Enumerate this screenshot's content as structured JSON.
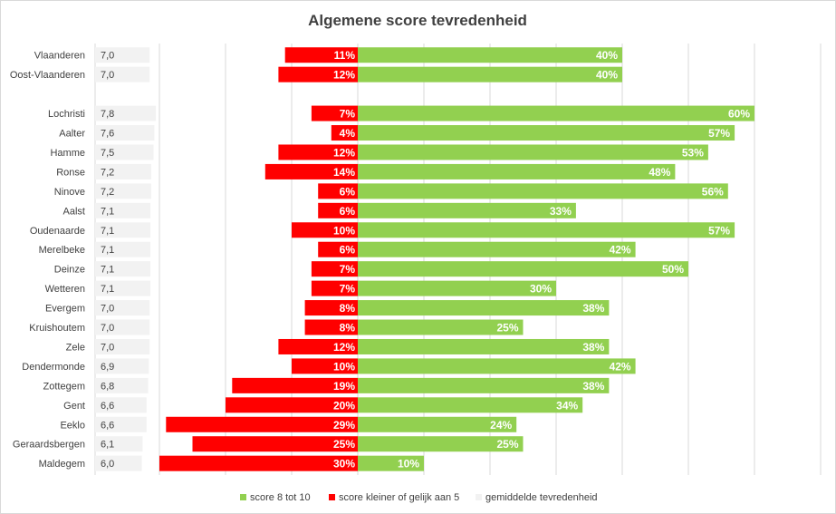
{
  "chart_data": {
    "type": "bar",
    "title": "Algemene score tevredenheid",
    "categories": [
      "Vlaanderen",
      "Oost-Vlaanderen",
      "",
      "Lochristi",
      "Aalter",
      "Hamme",
      "Ronse",
      "Ninove",
      "Aalst",
      "Oudenaarde",
      "Merelbeke",
      "Deinze",
      "Wetteren",
      "Evergem",
      "Kruishoutem",
      "Zele",
      "Dendermonde",
      "Zottegem",
      "Gent",
      "Eeklo",
      "Geraardsbergen",
      "Maldegem"
    ],
    "series": [
      {
        "name": "score 8 tot 10",
        "color": "#92d050",
        "values": [
          40,
          40,
          null,
          60,
          57,
          53,
          48,
          56,
          33,
          57,
          42,
          50,
          30,
          38,
          25,
          38,
          42,
          38,
          34,
          24,
          25,
          10
        ],
        "labels": [
          "40%",
          "40%",
          "",
          "60%",
          "57%",
          "53%",
          "48%",
          "56%",
          "33%",
          "57%",
          "42%",
          "50%",
          "30%",
          "38%",
          "25%",
          "38%",
          "42%",
          "38%",
          "34%",
          "24%",
          "25%",
          "10%"
        ]
      },
      {
        "name": "score kleiner of gelijk aan 5",
        "color": "#ff0000",
        "values": [
          11,
          12,
          null,
          7,
          4,
          12,
          14,
          6,
          6,
          10,
          6,
          7,
          7,
          8,
          8,
          12,
          10,
          19,
          20,
          29,
          25,
          30
        ],
        "labels": [
          "11%",
          "12%",
          "",
          "7%",
          "4%",
          "12%",
          "14%",
          "6%",
          "6%",
          "10%",
          "6%",
          "7%",
          "7%",
          "8%",
          "8%",
          "12%",
          "10%",
          "19%",
          "20%",
          "29%",
          "25%",
          "30%"
        ]
      },
      {
        "name": "gemiddelde tevredenheid",
        "color": "#f2f2f2",
        "values": [
          7.0,
          7.0,
          null,
          7.8,
          7.6,
          7.5,
          7.2,
          7.2,
          7.1,
          7.1,
          7.1,
          7.1,
          7.1,
          7.0,
          7.0,
          7.0,
          6.9,
          6.8,
          6.6,
          6.6,
          6.1,
          6.0
        ],
        "labels": [
          "7,0",
          "7,0",
          "",
          "7,8",
          "7,6",
          "7,5",
          "7,2",
          "7,2",
          "7,1",
          "7,1",
          "7,1",
          "7,1",
          "7,1",
          "7,0",
          "7,0",
          "7,0",
          "6,9",
          "6,8",
          "6,6",
          "6,6",
          "6,1",
          "6,0"
        ]
      }
    ],
    "legend": [
      "score 8 tot 10",
      "score kleiner of gelijk aan 5",
      "gemiddelde tevredenheid"
    ],
    "legend_position": "bottom",
    "gridlines": "vertical"
  }
}
